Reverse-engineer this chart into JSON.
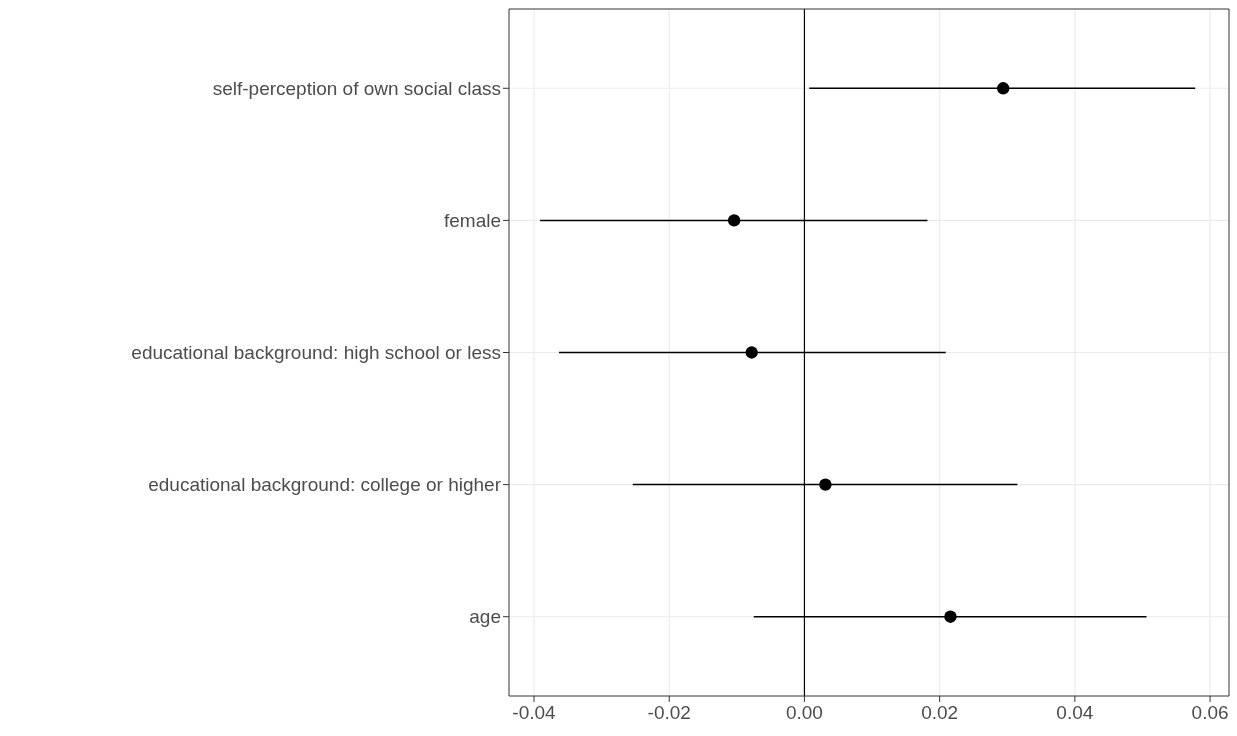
{
  "chart_data": {
    "type": "scatter",
    "orientation": "horizontal",
    "categories": [
      "self-perception of own social class",
      "female",
      "educational background: high school or less",
      "educational background: college or higher",
      "age"
    ],
    "values": [
      0.0294,
      -0.0104,
      -0.0078,
      0.0031,
      0.0216
    ],
    "errors": [
      [
        0.0007,
        0.0578
      ],
      [
        -0.0391,
        0.0182
      ],
      [
        -0.0363,
        0.0209
      ],
      [
        -0.0254,
        0.0315
      ],
      [
        -0.0075,
        0.0506
      ]
    ],
    "color": "#000000",
    "xlim": [
      -0.0437,
      0.0628
    ],
    "xticks": [
      {
        "value": -0.04,
        "label": "-0.04"
      },
      {
        "value": -0.02,
        "label": "-0.02"
      },
      {
        "value": 0,
        "label": "0.00"
      },
      {
        "value": 0.02,
        "label": "0.02"
      },
      {
        "value": 0.04,
        "label": "0.04"
      },
      {
        "value": 0.06,
        "label": "0.06"
      }
    ],
    "ref_lines": [
      {
        "axis": "x",
        "value": 0,
        "color": "#000000"
      }
    ],
    "grid": true,
    "marker": "circle"
  }
}
